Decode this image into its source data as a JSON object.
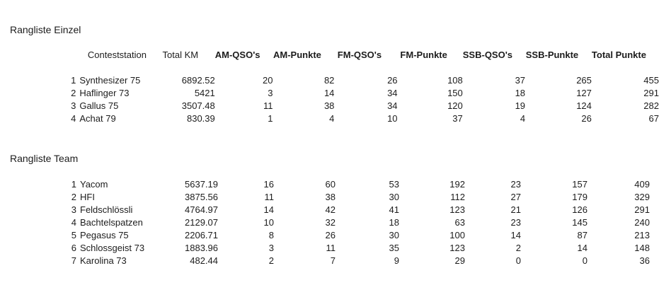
{
  "document": {
    "columns": [
      {
        "key": "station",
        "label": "Conteststation",
        "bold": false
      },
      {
        "key": "total_km",
        "label": "Total KM",
        "bold": false
      },
      {
        "key": "am_qsos",
        "label": "AM-QSO's",
        "bold": true
      },
      {
        "key": "am_punkte",
        "label": "AM-Punkte",
        "bold": true
      },
      {
        "key": "fm_qsos",
        "label": "FM-QSO's",
        "bold": true
      },
      {
        "key": "fm_punkte",
        "label": "FM-Punkte",
        "bold": true
      },
      {
        "key": "ssb_qsos",
        "label": "SSB-QSO's",
        "bold": true
      },
      {
        "key": "ssb_punkte",
        "label": "SSB-Punkte",
        "bold": true
      },
      {
        "key": "total_punkte",
        "label": "Total Punkte",
        "bold": true
      }
    ],
    "sections": {
      "einzel": {
        "title": "Rangliste Einzel",
        "rows": [
          {
            "rank": "1",
            "station": "Synthesizer 75",
            "total_km": "6892.52",
            "am_qsos": "20",
            "am_punkte": "82",
            "fm_qsos": "26",
            "fm_punkte": "108",
            "ssb_qsos": "37",
            "ssb_punkte": "265",
            "total_punkte": "455"
          },
          {
            "rank": "2",
            "station": "Haflinger 73",
            "total_km": "5421",
            "am_qsos": "3",
            "am_punkte": "14",
            "fm_qsos": "34",
            "fm_punkte": "150",
            "ssb_qsos": "18",
            "ssb_punkte": "127",
            "total_punkte": "291"
          },
          {
            "rank": "3",
            "station": "Gallus 75",
            "total_km": "3507.48",
            "am_qsos": "11",
            "am_punkte": "38",
            "fm_qsos": "34",
            "fm_punkte": "120",
            "ssb_qsos": "19",
            "ssb_punkte": "124",
            "total_punkte": "282"
          },
          {
            "rank": "4",
            "station": "Achat 79",
            "total_km": "830.39",
            "am_qsos": "1",
            "am_punkte": "4",
            "fm_qsos": "10",
            "fm_punkte": "37",
            "ssb_qsos": "4",
            "ssb_punkte": "26",
            "total_punkte": "67"
          }
        ]
      },
      "team": {
        "title": "Rangliste Team",
        "rows": [
          {
            "rank": "1",
            "station": "Yacom",
            "total_km": "5637.19",
            "am_qsos": "16",
            "am_punkte": "60",
            "fm_qsos": "53",
            "fm_punkte": "192",
            "ssb_qsos": "23",
            "ssb_punkte": "157",
            "total_punkte": "409"
          },
          {
            "rank": "2",
            "station": "HFI",
            "total_km": "3875.56",
            "am_qsos": "11",
            "am_punkte": "38",
            "fm_qsos": "30",
            "fm_punkte": "112",
            "ssb_qsos": "27",
            "ssb_punkte": "179",
            "total_punkte": "329"
          },
          {
            "rank": "3",
            "station": "Feldschlössli",
            "total_km": "4764.97",
            "am_qsos": "14",
            "am_punkte": "42",
            "fm_qsos": "41",
            "fm_punkte": "123",
            "ssb_qsos": "21",
            "ssb_punkte": "126",
            "total_punkte": "291"
          },
          {
            "rank": "4",
            "station": "Bachtelspatzen",
            "total_km": "2129.07",
            "am_qsos": "10",
            "am_punkte": "32",
            "fm_qsos": "18",
            "fm_punkte": "63",
            "ssb_qsos": "23",
            "ssb_punkte": "145",
            "total_punkte": "240"
          },
          {
            "rank": "5",
            "station": "Pegasus 75",
            "total_km": "2206.71",
            "am_qsos": "8",
            "am_punkte": "26",
            "fm_qsos": "30",
            "fm_punkte": "100",
            "ssb_qsos": "14",
            "ssb_punkte": "87",
            "total_punkte": "213"
          },
          {
            "rank": "6",
            "station": "Schlossgeist 73",
            "total_km": "1883.96",
            "am_qsos": "3",
            "am_punkte": "11",
            "fm_qsos": "35",
            "fm_punkte": "123",
            "ssb_qsos": "2",
            "ssb_punkte": "14",
            "total_punkte": "148"
          },
          {
            "rank": "7",
            "station": "Karolina 73",
            "total_km": "482.44",
            "am_qsos": "2",
            "am_punkte": "7",
            "fm_qsos": "9",
            "fm_punkte": "29",
            "ssb_qsos": "0",
            "ssb_punkte": "0",
            "total_punkte": "36"
          }
        ]
      }
    },
    "colors": {
      "background": "#ffffff",
      "text": "#1c1c1c"
    }
  }
}
